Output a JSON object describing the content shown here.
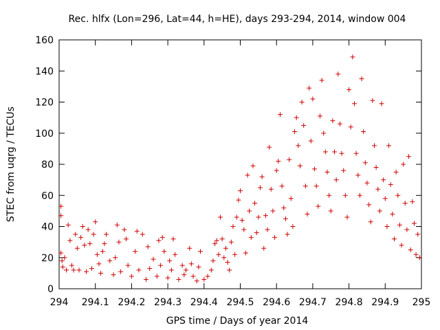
{
  "chart_data": {
    "type": "scatter",
    "title": "Rec. hlfx (Lon=296, Lat=44, h=HE), days 293-294, 2014, window 004",
    "xlabel": "GPS time / Days of year 2014",
    "ylabel": "STEC from uqrg / TECUs",
    "xlim": [
      294,
      295
    ],
    "ylim": [
      0,
      160
    ],
    "x_ticks": [
      294,
      294.1,
      294.2,
      294.3,
      294.4,
      294.5,
      294.6,
      294.7,
      294.8,
      294.9,
      295
    ],
    "x_tick_labels": [
      "294",
      "294.1",
      "294.2",
      "294.3",
      "294.4",
      "294.5",
      "294.6",
      "294.7",
      "294.8",
      "294.9",
      "295"
    ],
    "y_ticks": [
      0,
      20,
      40,
      60,
      80,
      100,
      120,
      140,
      160
    ],
    "y_tick_labels": [
      "0",
      "20",
      "40",
      "60",
      "80",
      "100",
      "120",
      "140",
      "160"
    ],
    "grid": false,
    "legend": "none",
    "marker": "plus",
    "color": "#cc0000",
    "series": [
      {
        "points": [
          [
            294.005,
            53
          ],
          [
            294.005,
            47
          ],
          [
            294.005,
            23
          ],
          [
            294.008,
            18
          ],
          [
            294.01,
            14
          ],
          [
            294.015,
            20
          ],
          [
            294.02,
            12
          ],
          [
            294.025,
            41
          ],
          [
            294.03,
            31
          ],
          [
            294.035,
            15
          ],
          [
            294.04,
            12
          ],
          [
            294.045,
            35
          ],
          [
            294.05,
            26
          ],
          [
            294.055,
            12
          ],
          [
            294.06,
            33
          ],
          [
            294.065,
            40
          ],
          [
            294.07,
            28
          ],
          [
            294.075,
            11
          ],
          [
            294.08,
            38
          ],
          [
            294.085,
            29
          ],
          [
            294.09,
            13
          ],
          [
            294.095,
            35
          ],
          [
            294.1,
            43
          ],
          [
            294.105,
            22
          ],
          [
            294.11,
            16
          ],
          [
            294.115,
            10
          ],
          [
            294.12,
            24
          ],
          [
            294.125,
            29
          ],
          [
            294.13,
            35
          ],
          [
            294.14,
            18
          ],
          [
            294.15,
            9
          ],
          [
            294.155,
            20
          ],
          [
            294.16,
            41
          ],
          [
            294.165,
            30
          ],
          [
            294.17,
            11
          ],
          [
            294.18,
            38
          ],
          [
            294.185,
            32
          ],
          [
            294.19,
            15
          ],
          [
            294.2,
            8
          ],
          [
            294.21,
            24
          ],
          [
            294.215,
            37
          ],
          [
            294.22,
            12
          ],
          [
            294.23,
            35
          ],
          [
            294.24,
            6
          ],
          [
            294.245,
            27
          ],
          [
            294.25,
            13
          ],
          [
            294.26,
            19
          ],
          [
            294.27,
            8
          ],
          [
            294.275,
            31
          ],
          [
            294.28,
            15
          ],
          [
            294.285,
            33
          ],
          [
            294.29,
            24
          ],
          [
            294.3,
            7
          ],
          [
            294.305,
            18
          ],
          [
            294.31,
            12
          ],
          [
            294.315,
            32
          ],
          [
            294.32,
            22
          ],
          [
            294.33,
            6
          ],
          [
            294.34,
            15
          ],
          [
            294.345,
            9
          ],
          [
            294.35,
            12
          ],
          [
            294.36,
            26
          ],
          [
            294.365,
            16
          ],
          [
            294.37,
            8
          ],
          [
            294.38,
            5
          ],
          [
            294.385,
            14
          ],
          [
            294.39,
            24
          ],
          [
            294.4,
            6
          ],
          [
            294.41,
            8
          ],
          [
            294.42,
            12
          ],
          [
            294.425,
            18
          ],
          [
            294.43,
            29
          ],
          [
            294.435,
            31
          ],
          [
            294.44,
            22
          ],
          [
            294.445,
            46
          ],
          [
            294.45,
            32
          ],
          [
            294.455,
            20
          ],
          [
            294.46,
            26
          ],
          [
            294.465,
            17
          ],
          [
            294.47,
            12
          ],
          [
            294.475,
            30
          ],
          [
            294.48,
            40
          ],
          [
            294.485,
            22
          ],
          [
            294.49,
            46
          ],
          [
            294.495,
            57
          ],
          [
            294.5,
            63
          ],
          [
            294.505,
            44
          ],
          [
            294.51,
            38
          ],
          [
            294.515,
            23
          ],
          [
            294.52,
            73
          ],
          [
            294.525,
            50
          ],
          [
            294.53,
            33
          ],
          [
            294.535,
            79
          ],
          [
            294.54,
            55
          ],
          [
            294.545,
            36
          ],
          [
            294.55,
            46
          ],
          [
            294.555,
            65
          ],
          [
            294.56,
            72
          ],
          [
            294.565,
            26
          ],
          [
            294.57,
            47
          ],
          [
            294.575,
            38
          ],
          [
            294.58,
            91
          ],
          [
            294.585,
            64
          ],
          [
            294.59,
            50
          ],
          [
            294.595,
            33
          ],
          [
            294.6,
            76
          ],
          [
            294.605,
            82
          ],
          [
            294.61,
            112
          ],
          [
            294.615,
            66
          ],
          [
            294.62,
            52
          ],
          [
            294.625,
            45
          ],
          [
            294.63,
            35
          ],
          [
            294.635,
            83
          ],
          [
            294.64,
            58
          ],
          [
            294.645,
            40
          ],
          [
            294.65,
            101
          ],
          [
            294.655,
            110
          ],
          [
            294.66,
            92
          ],
          [
            294.665,
            79
          ],
          [
            294.67,
            120
          ],
          [
            294.675,
            105
          ],
          [
            294.68,
            66
          ],
          [
            294.685,
            48
          ],
          [
            294.69,
            129
          ],
          [
            294.695,
            95
          ],
          [
            294.7,
            122
          ],
          [
            294.705,
            77
          ],
          [
            294.71,
            66
          ],
          [
            294.715,
            53
          ],
          [
            294.72,
            111
          ],
          [
            294.725,
            134
          ],
          [
            294.73,
            100
          ],
          [
            294.735,
            88
          ],
          [
            294.74,
            75
          ],
          [
            294.745,
            60
          ],
          [
            294.75,
            50
          ],
          [
            294.755,
            108
          ],
          [
            294.76,
            88
          ],
          [
            294.765,
            70
          ],
          [
            294.77,
            138
          ],
          [
            294.775,
            106
          ],
          [
            294.78,
            87
          ],
          [
            294.785,
            76
          ],
          [
            294.79,
            60
          ],
          [
            294.795,
            46
          ],
          [
            294.8,
            128
          ],
          [
            294.805,
            104
          ],
          [
            294.81,
            149
          ],
          [
            294.815,
            119
          ],
          [
            294.82,
            87
          ],
          [
            294.825,
            73
          ],
          [
            294.83,
            60
          ],
          [
            294.835,
            135
          ],
          [
            294.84,
            101
          ],
          [
            294.845,
            81
          ],
          [
            294.85,
            68
          ],
          [
            294.855,
            54
          ],
          [
            294.86,
            43
          ],
          [
            294.865,
            121
          ],
          [
            294.87,
            92
          ],
          [
            294.875,
            78
          ],
          [
            294.88,
            64
          ],
          [
            294.885,
            50
          ],
          [
            294.89,
            119
          ],
          [
            294.895,
            70
          ],
          [
            294.9,
            58
          ],
          [
            294.905,
            40
          ],
          [
            294.91,
            92
          ],
          [
            294.915,
            67
          ],
          [
            294.92,
            48
          ],
          [
            294.925,
            32
          ],
          [
            294.93,
            75
          ],
          [
            294.935,
            60
          ],
          [
            294.94,
            41
          ],
          [
            294.945,
            28
          ],
          [
            294.95,
            80
          ],
          [
            294.955,
            55
          ],
          [
            294.96,
            38
          ],
          [
            294.965,
            85
          ],
          [
            294.97,
            25
          ],
          [
            294.975,
            56
          ],
          [
            294.98,
            42
          ],
          [
            294.985,
            22
          ],
          [
            294.99,
            35
          ],
          [
            294.995,
            20
          ]
        ]
      }
    ]
  }
}
